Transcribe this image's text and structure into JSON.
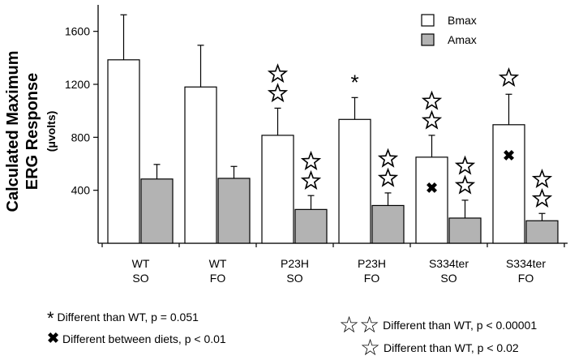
{
  "chart_data": {
    "type": "bar",
    "ylabel_line1": "Calculated Maximum",
    "ylabel_line2": "ERG Response",
    "ylabel_unit": "(μvolts)",
    "ylim": [
      0,
      1800
    ],
    "yticks": [
      400,
      800,
      1200,
      1600
    ],
    "grid": false,
    "legend_position": "top-right",
    "categories": [
      {
        "line1": "WT",
        "line2": "SO"
      },
      {
        "line1": "WT",
        "line2": "FO"
      },
      {
        "line1": "P23H",
        "line2": "SO"
      },
      {
        "line1": "P23H",
        "line2": "FO"
      },
      {
        "line1": "S334ter",
        "line2": "SO"
      },
      {
        "line1": "S334ter",
        "line2": "FO"
      }
    ],
    "series": [
      {
        "name": "Bmax",
        "color": "#ffffff",
        "values": [
          1385,
          1180,
          815,
          935,
          650,
          895
        ],
        "error": [
          340,
          315,
          205,
          165,
          165,
          230
        ]
      },
      {
        "name": "Amax",
        "color": "#b3b3b3",
        "values": [
          485,
          490,
          255,
          285,
          190,
          170
        ],
        "error": [
          110,
          90,
          105,
          95,
          135,
          55
        ]
      }
    ],
    "markers": [
      {
        "series": "Bmax",
        "category": 2,
        "symbol": "double-star",
        "position": "above"
      },
      {
        "series": "Amax",
        "category": 2,
        "symbol": "double-star",
        "position": "above"
      },
      {
        "series": "Bmax",
        "category": 3,
        "symbol": "asterisk",
        "position": "above"
      },
      {
        "series": "Amax",
        "category": 3,
        "symbol": "double-star",
        "position": "above"
      },
      {
        "series": "Bmax",
        "category": 4,
        "symbol": "double-star",
        "position": "above"
      },
      {
        "series": "Bmax",
        "category": 4,
        "symbol": "cross",
        "position": "inside"
      },
      {
        "series": "Amax",
        "category": 4,
        "symbol": "double-star",
        "position": "above"
      },
      {
        "series": "Bmax",
        "category": 5,
        "symbol": "single-star",
        "position": "above"
      },
      {
        "series": "Bmax",
        "category": 5,
        "symbol": "cross",
        "position": "inside"
      },
      {
        "series": "Amax",
        "category": 5,
        "symbol": "double-star",
        "position": "above"
      }
    ],
    "footnotes": {
      "asterisk": "Different than WT, p = 0.051",
      "cross": "Different between diets, p < 0.01",
      "double_star": "Different than WT, p < 0.00001",
      "single_star": "Different than WT, p < 0.02"
    }
  }
}
